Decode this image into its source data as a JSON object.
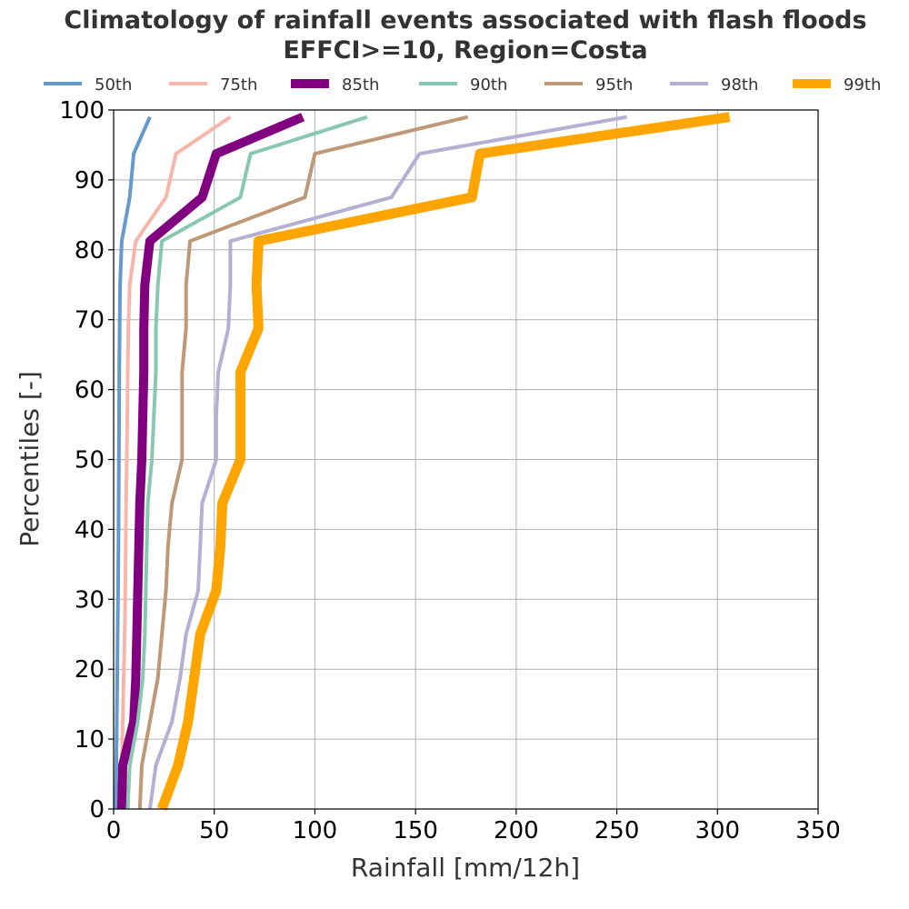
{
  "chart_data": {
    "type": "line",
    "title": [
      "Climatology of rainfall events associated with flash floods",
      "EFFCI>=10, Region=Costa"
    ],
    "xlabel": "Rainfall [mm/12h]",
    "ylabel": "Percentiles [-]",
    "xlim": [
      0,
      350
    ],
    "ylim": [
      0,
      100
    ],
    "xticks": [
      0,
      50,
      100,
      150,
      200,
      250,
      300,
      350
    ],
    "yticks": [
      0,
      10,
      20,
      30,
      40,
      50,
      60,
      70,
      80,
      90,
      100
    ],
    "grid": true,
    "legend": "top",
    "y": [
      0,
      6.25,
      12.5,
      18.75,
      25,
      31.25,
      37.5,
      43.75,
      50,
      56.25,
      62.5,
      68.75,
      75,
      81.25,
      87.5,
      93.75,
      99
    ],
    "series": [
      {
        "name": "50th",
        "color": "#6699cc",
        "width": 4,
        "x": [
          1,
          1.3,
          1.6,
          1.8,
          2,
          2.2,
          2.4,
          2.5,
          2.6,
          2.7,
          2.8,
          3,
          3.2,
          4,
          8,
          10,
          18
        ]
      },
      {
        "name": "75th",
        "color": "#f7b6a9",
        "width": 4,
        "x": [
          3,
          4,
          4.5,
          5,
          5.5,
          5.8,
          6,
          6.2,
          6.5,
          6.8,
          7,
          7.3,
          8,
          11,
          26,
          31,
          58
        ]
      },
      {
        "name": "85th",
        "color": "#800080",
        "width": 10,
        "x": [
          4,
          4.5,
          10,
          11,
          11.5,
          12,
          12.5,
          13,
          14,
          14.5,
          15,
          15,
          15.5,
          18,
          44,
          51,
          94
        ]
      },
      {
        "name": "90th",
        "color": "#88c8b0",
        "width": 4,
        "x": [
          7,
          8,
          12,
          14.5,
          15.5,
          16,
          16.5,
          17,
          19,
          20,
          21,
          21,
          22,
          24,
          63,
          68,
          126
        ]
      },
      {
        "name": "95th",
        "color": "#bf9878",
        "width": 4,
        "x": [
          13,
          14,
          18,
          22,
          24,
          26,
          27,
          29,
          34,
          34,
          34,
          36,
          36,
          38,
          95,
          100,
          176
        ]
      },
      {
        "name": "98th",
        "color": "#b3b0d4",
        "width": 4,
        "x": [
          18,
          21,
          29,
          33,
          36,
          42,
          43,
          44,
          51,
          51,
          52,
          57,
          58,
          58,
          138,
          152,
          255
        ]
      },
      {
        "name": "99th",
        "color": "#ffa500",
        "width": 11,
        "x": [
          24,
          32,
          37,
          40,
          43,
          51,
          53,
          54,
          63,
          63,
          63,
          72,
          71,
          72,
          178,
          182,
          306
        ]
      }
    ]
  }
}
